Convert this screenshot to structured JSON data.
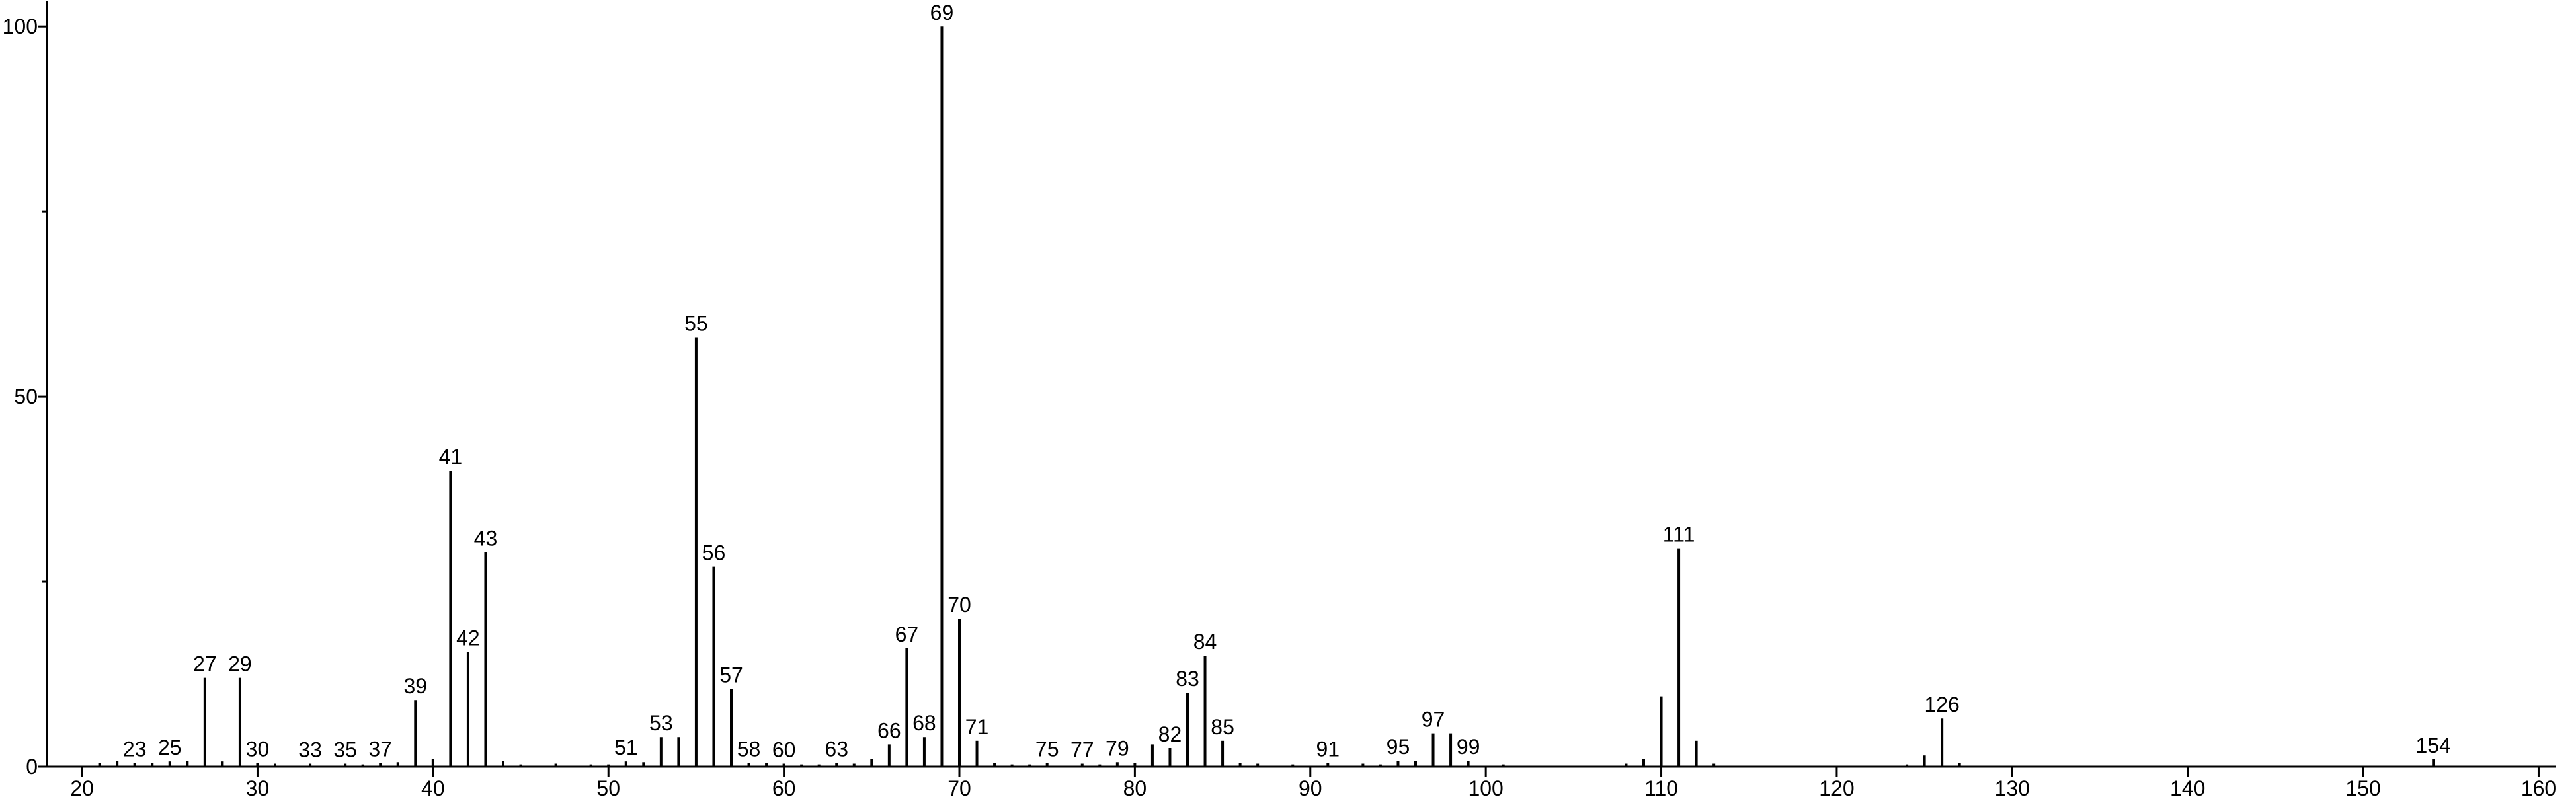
{
  "chart_data": {
    "type": "stem",
    "color": "#000000",
    "xlim": [
      18,
      161
    ],
    "xticks": [
      20,
      30,
      40,
      50,
      60,
      70,
      80,
      90,
      100,
      110,
      120,
      130,
      140,
      150,
      160
    ],
    "ylim": [
      0,
      103.5
    ],
    "yticks": [
      0,
      50,
      100
    ],
    "yminor": [
      25,
      75
    ],
    "x": [
      21,
      22,
      23,
      24,
      25,
      26,
      27,
      28,
      29,
      30,
      31,
      33,
      35,
      36,
      37,
      38,
      39,
      40,
      41,
      42,
      43,
      44,
      45,
      47,
      49,
      50,
      51,
      52,
      53,
      54,
      55,
      56,
      57,
      58,
      59,
      60,
      61,
      62,
      63,
      64,
      65,
      66,
      67,
      68,
      69,
      70,
      71,
      72,
      73,
      74,
      75,
      77,
      78,
      79,
      80,
      81,
      82,
      83,
      84,
      85,
      86,
      87,
      89,
      91,
      93,
      94,
      95,
      96,
      97,
      98,
      99,
      101,
      108,
      109,
      110,
      111,
      112,
      113,
      124,
      125,
      126,
      127,
      154
    ],
    "values": [
      0.5,
      0.8,
      0.5,
      0.5,
      0.7,
      0.8,
      12,
      0.7,
      12,
      0.5,
      0.4,
      0.4,
      0.4,
      0.3,
      0.5,
      0.6,
      9,
      1,
      40,
      15.5,
      29,
      0.8,
      0.3,
      0.4,
      0.3,
      0.3,
      0.7,
      0.6,
      4,
      4,
      58,
      27,
      10.5,
      0.5,
      0.5,
      0.4,
      0.3,
      0.3,
      0.5,
      0.4,
      1,
      3,
      16,
      4,
      100,
      20,
      3.5,
      0.5,
      0.3,
      0.3,
      0.5,
      0.4,
      0.3,
      0.6,
      0.5,
      3,
      2.5,
      10,
      15,
      3.5,
      0.5,
      0.4,
      0.3,
      0.5,
      0.4,
      0.3,
      0.8,
      0.8,
      4.5,
      4.5,
      0.8,
      0.3,
      0.4,
      1,
      9.5,
      29.5,
      3.5,
      0.4,
      0.3,
      1.5,
      6.5,
      0.5,
      1
    ],
    "labels": [
      null,
      null,
      "23",
      null,
      "25",
      null,
      "27",
      null,
      "29",
      "30",
      null,
      "33",
      "35",
      null,
      "37",
      null,
      "39",
      null,
      "41",
      "42",
      "43",
      null,
      null,
      null,
      null,
      null,
      "51",
      null,
      "53",
      null,
      "55",
      "56",
      "57",
      "58",
      null,
      "60",
      null,
      null,
      "63",
      null,
      null,
      "66",
      "67",
      "68",
      "69",
      "70",
      "71",
      null,
      null,
      null,
      "75",
      "77",
      null,
      "79",
      null,
      null,
      "82",
      "83",
      "84",
      "85",
      null,
      null,
      null,
      "91",
      null,
      null,
      "95",
      null,
      "97",
      null,
      "99",
      null,
      null,
      null,
      null,
      "111",
      null,
      null,
      null,
      null,
      "126",
      null,
      "154"
    ]
  }
}
